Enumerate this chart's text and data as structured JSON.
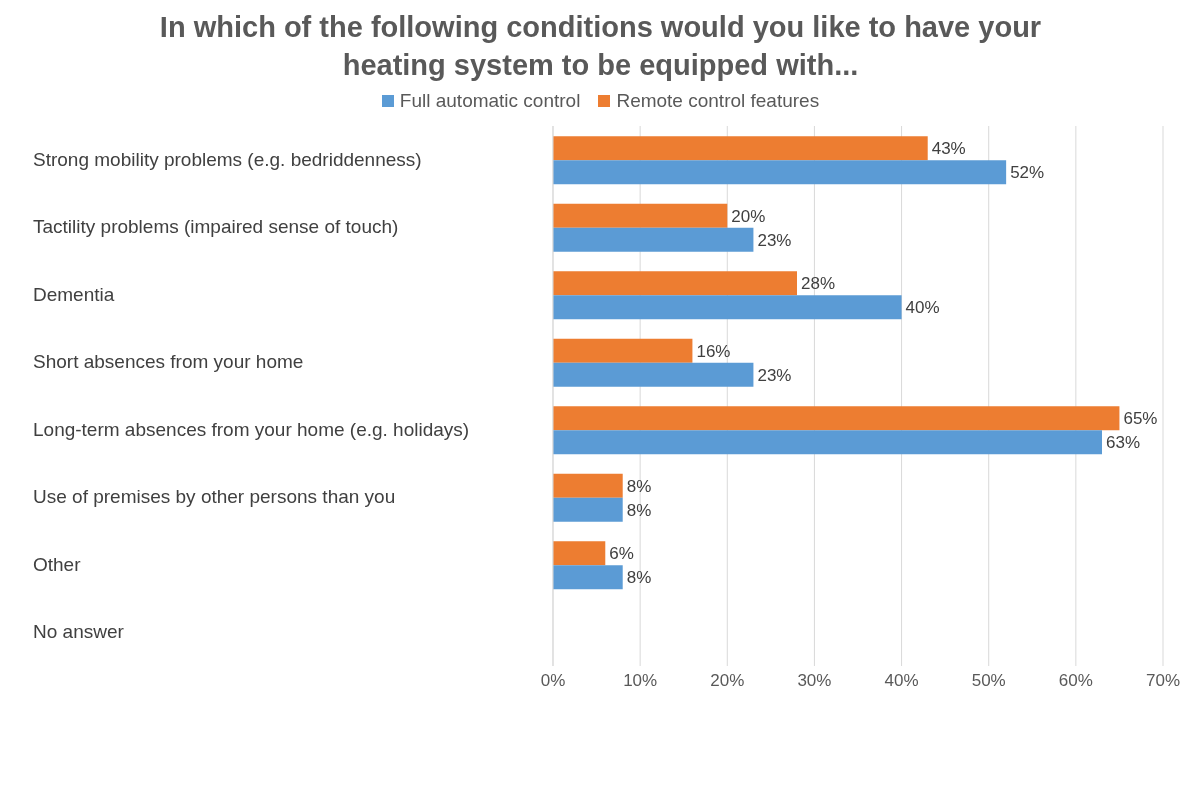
{
  "chart_data": {
    "type": "bar",
    "orientation": "horizontal",
    "title": "In which of the following conditions would you like to have your heating system to be equipped with...",
    "categories": [
      "Strong mobility problems (e.g. bedriddenness)",
      "Tactility problems (impaired sense of touch)",
      "Dementia",
      "Short absences from your home",
      "Long-term absences from your home (e.g. holidays)",
      "Use of premises by other persons than you",
      "Other",
      "No answer"
    ],
    "series": [
      {
        "name": "Full automatic control",
        "color": "#5b9bd5",
        "values": [
          52,
          23,
          40,
          23,
          63,
          8,
          8,
          null
        ],
        "value_labels": [
          "52%",
          "23%",
          "40%",
          "23%",
          "63%",
          "8%",
          "8%",
          null
        ]
      },
      {
        "name": "Remote control features",
        "color": "#ed7d31",
        "values": [
          43,
          20,
          28,
          16,
          65,
          8,
          6,
          null
        ],
        "value_labels": [
          "43%",
          "20%",
          "28%",
          "16%",
          "65%",
          "8%",
          "6%",
          null
        ]
      }
    ],
    "xlim": [
      0,
      70
    ],
    "xticks": [
      {
        "value": 0,
        "label": "0%"
      },
      {
        "value": 10,
        "label": "10%"
      },
      {
        "value": 20,
        "label": "20%"
      },
      {
        "value": 30,
        "label": "30%"
      },
      {
        "value": 40,
        "label": "40%"
      },
      {
        "value": 50,
        "label": "50%"
      },
      {
        "value": 60,
        "label": "60%"
      },
      {
        "value": 70,
        "label": "70%"
      }
    ],
    "grid": "x",
    "legend": "top"
  }
}
